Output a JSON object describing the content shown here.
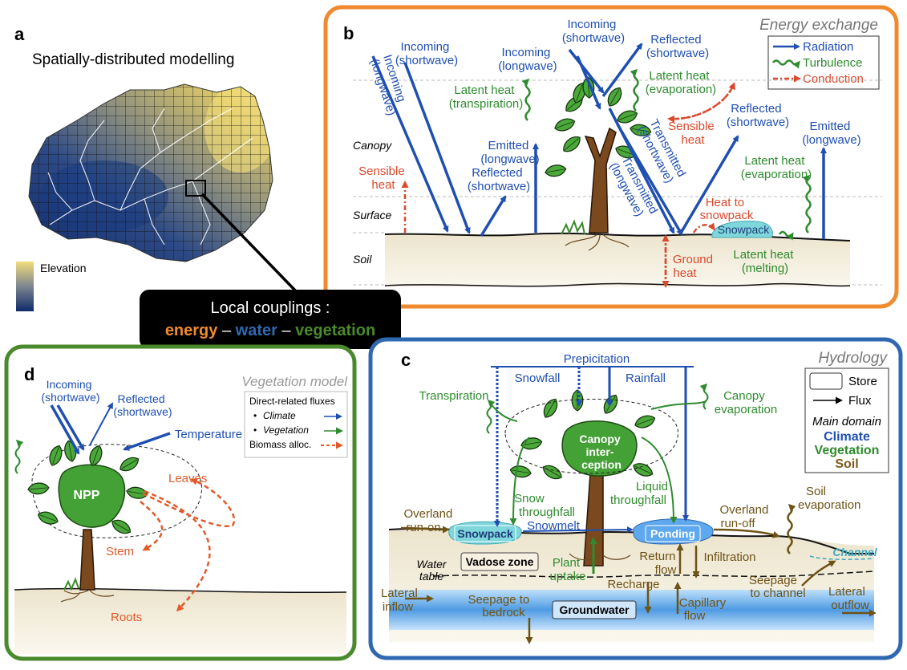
{
  "colors": {
    "energy": "#ef8a2f",
    "water": "#2f68b0",
    "vegetation": "#4a8a2c",
    "radiation": "#1f4fb0",
    "turbulence": "#2e8b2e",
    "conduction": "#d9492c",
    "soil": "#7a5a18",
    "trunk": "#7a4a1e",
    "leaf": "#3e9a32"
  },
  "panel_a": {
    "letter": "a",
    "title": "Spatially-distributed modelling",
    "legend_label": "Elevation"
  },
  "coupling_box": {
    "title": "Local couplings :",
    "energy": "energy",
    "dash1": " – ",
    "water": "water",
    "dash2": " – ",
    "vegetation": "vegetation"
  },
  "panel_b": {
    "letter": "b",
    "title": "Energy exchange",
    "legend": {
      "radiation": "Radiation",
      "turbulence": "Turbulence",
      "conduction": "Conduction"
    },
    "layers": {
      "canopy": "Canopy",
      "surface": "Surface",
      "soil": "Soil"
    },
    "labels": {
      "incoming_lw_diag_1": "Incoming",
      "incoming_lw_diag_2": "(longwave)",
      "incoming_sw_left_1": "Incoming",
      "incoming_sw_left_2": "(shortwave)",
      "latent_transp_1": "Latent heat",
      "latent_transp_2": "(transpiration)",
      "incoming_lw_mid_1": "Incoming",
      "incoming_lw_mid_2": "(longwave)",
      "incoming_sw_top_1": "Incoming",
      "incoming_sw_top_2": "(shortwave)",
      "reflected_sw_top_1": "Reflected",
      "reflected_sw_top_2": "(shortwave)",
      "latent_evap_top_1": "Latent heat",
      "latent_evap_top_2": "(evaporation)",
      "sensible_top_1": "Sensible",
      "sensible_top_2": "heat",
      "reflected_sw_right_1": "Reflected",
      "reflected_sw_right_2": "(shortwave)",
      "emitted_lw_right_1": "Emitted",
      "emitted_lw_right_2": "(longwave)",
      "emitted_lw_mid_1": "Emitted",
      "emitted_lw_mid_2": "(longwave)",
      "reflected_sw_mid_1": "Reflected",
      "reflected_sw_mid_2": "(shortwave)",
      "sensible_left_1": "Sensible",
      "sensible_left_2": "heat",
      "transmitted_sw_1": "Transmitted",
      "transmitted_sw_2": "(shortwave)",
      "transmitted_lw_1": "Transmitted",
      "transmitted_lw_2": "(longwave)",
      "latent_evap_right_1": "Latent heat",
      "latent_evap_right_2": "(evaporation)",
      "heat_snow_1": "Heat to",
      "heat_snow_2": "snowpack",
      "snowpack": "Snowpack",
      "ground_1": "Ground",
      "ground_2": "heat",
      "latent_melt_1": "Latent heat",
      "latent_melt_2": "(melting)"
    }
  },
  "panel_c": {
    "letter": "c",
    "title": "Hydrology",
    "legend": {
      "store": "Store",
      "flux": "Flux",
      "main_domain": "Main domain",
      "climate": "Climate",
      "vegetation": "Vegetation",
      "soil": "Soil"
    },
    "labels": {
      "precipitation": "Prepicitation",
      "snowfall": "Snowfall",
      "rainfall": "Rainfall",
      "transpiration": "Transpiration",
      "canopy_evap_1": "Canopy",
      "canopy_evap_2": "evaporation",
      "canopy_int_1": "Canopy",
      "canopy_int_2": "inter-",
      "canopy_int_3": "ception",
      "snow_through_1": "Snow",
      "snow_through_2": "throughfall",
      "liquid_through_1": "Liquid",
      "liquid_through_2": "throughfall",
      "overland_on_1": "Overland",
      "overland_on_2": "run-on",
      "snowpack": "Snowpack",
      "snowmelt": "Snowmelt",
      "ponding": "Ponding",
      "overland_off_1": "Overland",
      "overland_off_2": "run-off",
      "soil_evap_1": "Soil",
      "soil_evap_2": "evaporation",
      "channel": "Channel",
      "water_table_1": "Water",
      "water_table_2": "table",
      "vadose": "Vadose zone",
      "plant_uptake_1": "Plant",
      "plant_uptake_2": "uptake",
      "return_1": "Return",
      "return_2": "flow",
      "infiltration": "Infiltration",
      "recharge": "Recharge",
      "seepage_channel_1": "Seepage",
      "seepage_channel_2": "to channel",
      "lateral_in_1": "Lateral",
      "lateral_in_2": "inflow",
      "seepage_bed_1": "Seepage to",
      "seepage_bed_2": "bedrock",
      "groundwater": "Groundwater",
      "capillary_1": "Capillary",
      "capillary_2": "flow",
      "lateral_out_1": "Lateral",
      "lateral_out_2": "outflow"
    }
  },
  "panel_d": {
    "letter": "d",
    "title": "Vegetation model",
    "legend": {
      "header": "Direct-related fluxes",
      "climate": "Climate",
      "vegetation": "Vegetation",
      "biomass": "Biomass alloc."
    },
    "labels": {
      "incoming_1": "Incoming",
      "incoming_2": "(shortwave)",
      "reflected_1": "Reflected",
      "reflected_2": "(shortwave)",
      "temperature": "Temperature",
      "npp": "NPP",
      "leaves": "Leaves",
      "stem": "Stem",
      "roots": "Roots"
    }
  }
}
